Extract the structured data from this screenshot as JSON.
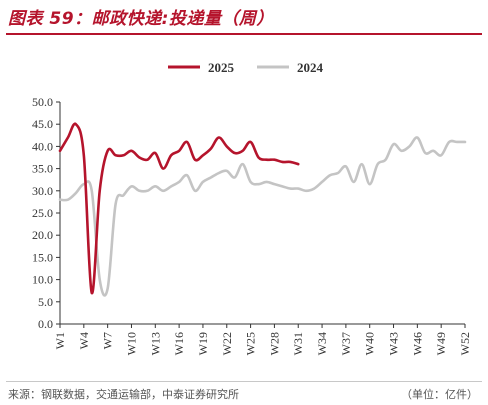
{
  "header": {
    "title": "图表 59：邮政快递:投递量（周）"
  },
  "footer": {
    "source": "来源：钢联数据，交通运输部，中泰证券研究所",
    "unit": "（单位：亿件）"
  },
  "colors": {
    "series_2025": "#b5142c",
    "series_2024": "#c4c4c4",
    "accent": "#b5142c"
  },
  "chart_data": {
    "type": "line",
    "title": "",
    "xlabel": "",
    "ylabel": "",
    "ylim": [
      0,
      50
    ],
    "yticks": [
      "0.0",
      "5.0",
      "10.0",
      "15.0",
      "20.0",
      "25.0",
      "30.0",
      "35.0",
      "40.0",
      "45.0",
      "50.0"
    ],
    "xticks": [
      "W1",
      "W4",
      "W7",
      "W10",
      "W13",
      "W16",
      "W19",
      "W22",
      "W25",
      "W28",
      "W31",
      "W34",
      "W37",
      "W40",
      "W43",
      "W46",
      "W49",
      "W52"
    ],
    "grid": false,
    "legend_position": "top-center",
    "series": [
      {
        "name": "2025",
        "values": [
          39.0,
          42.0,
          45.0,
          38.0,
          7.0,
          30.0,
          39.0,
          38.0,
          38.0,
          39.0,
          37.5,
          37.0,
          38.5,
          35.0,
          38.0,
          39.0,
          41.0,
          37.0,
          38.0,
          39.5,
          42.0,
          40.0,
          38.5,
          39.0,
          41.0,
          37.5,
          37.0,
          37.0,
          36.5,
          36.5,
          36.0
        ]
      },
      {
        "name": "2024",
        "values": [
          28.0,
          28.0,
          29.5,
          31.5,
          30.0,
          10.0,
          8.0,
          27.0,
          29.0,
          31.0,
          30.0,
          30.0,
          31.0,
          30.0,
          31.0,
          32.0,
          33.5,
          30.0,
          32.0,
          33.0,
          34.0,
          34.5,
          33.0,
          36.0,
          32.0,
          31.5,
          32.0,
          31.5,
          31.0,
          30.5,
          30.5,
          30.0,
          30.5,
          32.0,
          33.5,
          34.0,
          35.5,
          32.0,
          36.0,
          31.5,
          36.0,
          37.0,
          40.5,
          39.0,
          40.0,
          42.0,
          38.5,
          39.0,
          38.0,
          41.0,
          41.0,
          41.0
        ]
      }
    ]
  }
}
